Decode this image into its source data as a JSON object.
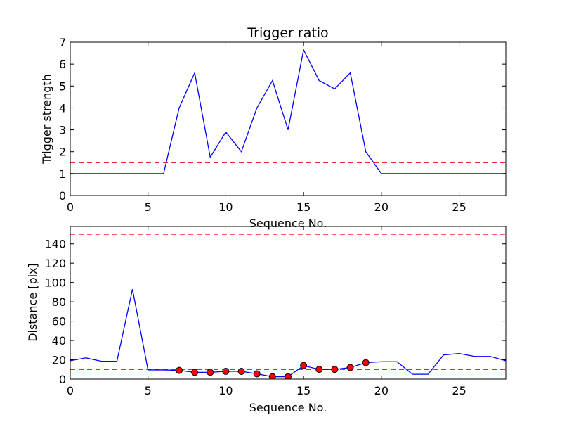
{
  "colors": {
    "line": "#0000ff",
    "threshold": "#ff0000",
    "marker_fill": "#ff0000",
    "marker_edge": "#000000"
  },
  "chart_data": [
    {
      "type": "line",
      "title": "Trigger ratio",
      "xlabel": "Sequence No.",
      "ylabel": "Trigger strength",
      "xlim": [
        0,
        28
      ],
      "ylim": [
        0,
        7
      ],
      "xticks": [
        0,
        5,
        10,
        15,
        20,
        25
      ],
      "yticks": [
        0,
        1,
        2,
        3,
        4,
        5,
        6,
        7
      ],
      "grid": false,
      "series": [
        {
          "style": "solid-blue-line",
          "x": [
            0,
            1,
            2,
            3,
            4,
            5,
            6,
            7,
            8,
            9,
            10,
            11,
            12,
            13,
            14,
            15,
            16,
            17,
            18,
            19,
            20,
            21,
            22,
            23,
            24,
            25,
            26,
            27,
            28
          ],
          "y": [
            1,
            1,
            1,
            1,
            1,
            1,
            1,
            4.0,
            5.6,
            1.75,
            2.9,
            2.0,
            4.0,
            5.25,
            3.0,
            6.65,
            5.25,
            4.87,
            5.6,
            2.0,
            1,
            1,
            1,
            1,
            1,
            1,
            1,
            1,
            1
          ]
        }
      ],
      "thresholds": [
        1.5
      ]
    },
    {
      "type": "line",
      "title": "",
      "xlabel": "Sequence No.",
      "ylabel": "Distance [pix]",
      "xlim": [
        0,
        28
      ],
      "ylim": [
        0,
        158
      ],
      "xticks": [
        0,
        5,
        10,
        15,
        20,
        25
      ],
      "yticks": [
        0,
        20,
        40,
        60,
        80,
        100,
        120,
        140
      ],
      "grid": false,
      "series": [
        {
          "style": "solid-blue-line",
          "x": [
            0,
            1,
            2,
            3,
            4,
            5,
            6,
            7,
            8,
            9,
            10,
            11,
            12,
            13,
            14,
            15,
            16,
            17,
            18,
            19,
            20,
            21,
            22,
            23,
            24,
            25,
            26,
            27,
            28
          ],
          "y": [
            19,
            22,
            18.5,
            18.5,
            93,
            9.5,
            9.5,
            9,
            7,
            7,
            8,
            8,
            5.5,
            2.5,
            2.5,
            14,
            10,
            10,
            12,
            17,
            18,
            18,
            5,
            5,
            25,
            26.5,
            23.5,
            23.5,
            19
          ]
        },
        {
          "style": "red-circle-markers",
          "x": [
            7,
            8,
            9,
            10,
            11,
            12,
            13,
            14,
            15,
            16,
            17,
            18,
            19
          ],
          "y": [
            9,
            7,
            7,
            8,
            8,
            5.5,
            2.5,
            2.5,
            14,
            10,
            10,
            12,
            17
          ]
        }
      ],
      "thresholds": [
        10,
        150
      ]
    }
  ]
}
